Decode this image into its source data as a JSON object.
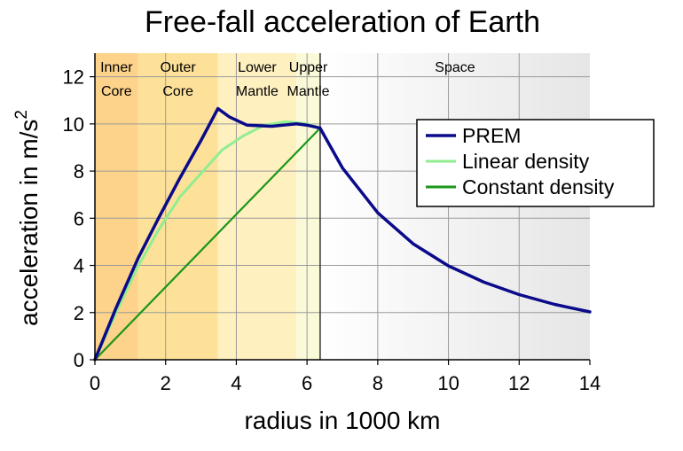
{
  "chart_data": {
    "type": "line",
    "title": "Free-fall acceleration of Earth",
    "xlabel": "radius in 1000 km",
    "ylabel_main": "acceleration in m/s",
    "ylabel_sup": "2",
    "xlim": [
      0,
      14
    ],
    "ylim": [
      0,
      13
    ],
    "x_ticks": [
      0,
      2,
      4,
      6,
      8,
      10,
      12,
      14
    ],
    "y_ticks": [
      0,
      2,
      4,
      6,
      8,
      10,
      12
    ],
    "grid": true,
    "legend_position": "upper right",
    "regions": [
      {
        "line1": "Inner",
        "line2": "Core",
        "from": 0,
        "to": 1.22,
        "color": "#fdd28a"
      },
      {
        "line1": "Outer",
        "line2": "Core",
        "from": 1.22,
        "to": 3.48,
        "color": "#fde199"
      },
      {
        "line1": "Lower",
        "line2": "Mantle",
        "from": 3.48,
        "to": 5.7,
        "color": "#fff0c0"
      },
      {
        "line1": "Upper",
        "line2": "Mantle",
        "from": 5.7,
        "to": 6.371,
        "color": "#fafad8"
      },
      {
        "line1": "Space",
        "line2": "",
        "from": 6.371,
        "to": 14,
        "color": "#f6f6f6"
      }
    ],
    "series": [
      {
        "name": "PREM",
        "color": "#0a0a8a",
        "x": [
          0,
          0.6,
          1.22,
          1.8,
          2.4,
          3.0,
          3.48,
          3.8,
          4.3,
          5.0,
          5.7,
          6.0,
          6.371,
          7.0,
          8.0,
          9.0,
          10.0,
          11.0,
          12.0,
          13.0,
          14.0
        ],
        "y": [
          0,
          2.2,
          4.3,
          6.0,
          7.7,
          9.3,
          10.65,
          10.3,
          9.95,
          9.9,
          10.0,
          9.95,
          9.82,
          8.14,
          6.23,
          4.92,
          3.98,
          3.29,
          2.76,
          2.35,
          2.03
        ]
      },
      {
        "name": "Linear density",
        "color": "#90ee90",
        "x": [
          0,
          0.6,
          1.2,
          1.8,
          2.4,
          3.0,
          3.6,
          4.2,
          4.8,
          5.4,
          6.0,
          6.371
        ],
        "y": [
          0,
          2.0,
          3.9,
          5.5,
          6.9,
          7.9,
          8.9,
          9.5,
          9.95,
          10.1,
          10.0,
          9.82
        ]
      },
      {
        "name": "Constant density",
        "color": "#1a961a",
        "x": [
          0,
          6.371
        ],
        "y": [
          0,
          9.82
        ]
      }
    ]
  }
}
